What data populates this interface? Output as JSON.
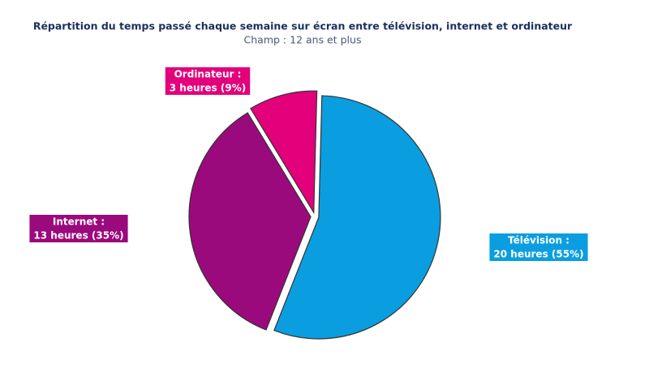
{
  "chart_data": {
    "type": "pie",
    "title": "Répartition du temps passé chaque semaine sur écran entre télévision, internet et ordinateur",
    "subtitle": "Champ : 12 ans et plus",
    "categories": [
      "Télévision :",
      "Internet :",
      "Ordinateur :"
    ],
    "values": [
      55,
      35,
      9
    ],
    "value_labels": [
      "20 heures (55%)",
      "13 heures (35%)",
      "3 heures (9%)"
    ],
    "colors": [
      "#0a9ee0",
      "#9b0a7c",
      "#e2007b"
    ]
  }
}
